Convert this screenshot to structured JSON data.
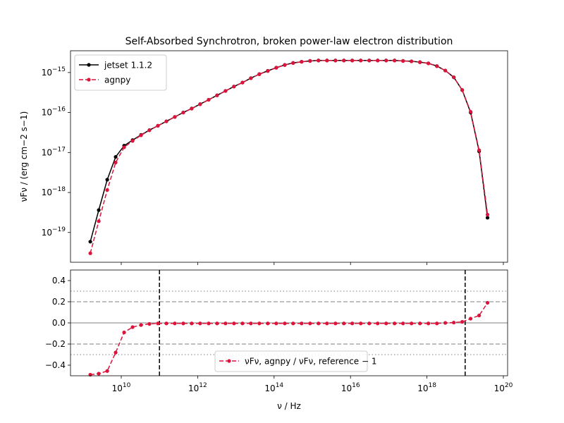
{
  "chart_data": [
    {
      "type": "line",
      "title": "Self-Absorbed Synchrotron, broken power-law electron distribution",
      "y_label": "νFν / (erg cm−2 s−1)",
      "xscale": "log",
      "yscale": "log",
      "xlim": [
        470000000.0,
        1.29e+20
      ],
      "ylim": [
        1.8e-20,
        3.5e-15
      ],
      "xticks": [
        10000000000.0,
        1000000000000.0,
        100000000000000.0,
        1e+16,
        1e+18,
        1e+20
      ],
      "xtick_labels": false,
      "yticks": [
        {
          "value": 1e-19,
          "label": "10−19"
        },
        {
          "value": 1e-18,
          "label": "10−18"
        },
        {
          "value": 1e-17,
          "label": "10−17"
        },
        {
          "value": 1e-16,
          "label": "10−16"
        },
        {
          "value": 1e-15,
          "label": "10−15"
        }
      ],
      "legend": "upper left",
      "x": [
        1550000000.0,
        2580000000.0,
        4300000000.0,
        7140000000.0,
        11900000000.0,
        19800000000.0,
        32900000000.0,
        54700000000.0,
        91200000000.0,
        152000000000.0,
        252000000000.0,
        420000000000.0,
        698000000000.0,
        1160000000000.0,
        1940000000000.0,
        3220000000000.0,
        5360000000000.0,
        8910000000000.0,
        14900000000000.0,
        24700000000000.0,
        41100000000000.0,
        68400000000000.0,
        114000000000000.0,
        190000000000000.0,
        315000000000000.0,
        525000000000000.0,
        873000000000000.0,
        1450000000000000.0,
        2420000000000000.0,
        4030000000000000.0,
        6700000000000000.0,
        1.11e+16,
        1.85e+16,
        3.09e+16,
        5.14e+16,
        8.55e+16,
        1.42e+17,
        2.37e+17,
        3.94e+17,
        6.56e+17,
        1.09e+18,
        1.82e+18,
        3.02e+18,
        5.04e+18,
        8.37e+18,
        1.39e+19,
        2.32e+19,
        3.85e+19
      ],
      "series": [
        {
          "name": "jetset 1.1.2",
          "color": "#000000",
          "linestyle": "solid",
          "marker": "o",
          "values": [
            5.89e-20,
            3.63e-19,
            2.09e-18,
            7.76e-18,
            1.48e-17,
            2.04e-17,
            2.75e-17,
            3.63e-17,
            4.68e-17,
            6.03e-17,
            7.76e-17,
            1e-16,
            1.26e-16,
            1.62e-16,
            2.09e-16,
            2.69e-16,
            3.47e-16,
            4.47e-16,
            5.62e-16,
            7.24e-16,
            9.12e-16,
            1.1e-15,
            1.32e-15,
            1.55e-15,
            1.74e-15,
            1.86e-15,
            1.95e-15,
            2e-15,
            2e-15,
            2e-15,
            2e-15,
            2e-15,
            2e-15,
            2e-15,
            2e-15,
            2e-15,
            2e-15,
            1.95e-15,
            1.91e-15,
            1.82e-15,
            1.7e-15,
            1.45e-15,
            1.12e-15,
            7.59e-16,
            3.63e-16,
            1e-16,
            1.07e-17,
            2.34e-19
          ]
        },
        {
          "name": "agnpy",
          "color": "#dc143c",
          "linestyle": "dashed",
          "marker": "o",
          "values": [
            3.02e-20,
            1.91e-19,
            1.15e-18,
            5.62e-18,
            1.35e-17,
            1.95e-17,
            2.69e-17,
            3.59e-17,
            4.66e-17,
            6e-17,
            7.72e-17,
            9.95e-17,
            1.25e-16,
            1.61e-16,
            2.08e-16,
            2.68e-16,
            3.45e-16,
            4.45e-16,
            5.59e-16,
            7.2e-16,
            9.07e-16,
            1.09e-15,
            1.31e-15,
            1.54e-15,
            1.73e-15,
            1.85e-15,
            1.94e-15,
            1.99e-15,
            1.99e-15,
            1.99e-15,
            1.99e-15,
            1.99e-15,
            1.99e-15,
            1.99e-15,
            1.99e-15,
            1.99e-15,
            1.99e-15,
            1.94e-15,
            1.9e-15,
            1.81e-15,
            1.69e-15,
            1.44e-15,
            1.12e-15,
            7.61e-16,
            3.67e-16,
            1.04e-16,
            1.14e-17,
            2.79e-19
          ]
        }
      ]
    },
    {
      "type": "line",
      "x_label": "ν / Hz",
      "xscale": "log",
      "yscale": "linear",
      "xlim": [
        470000000.0,
        1.29e+20
      ],
      "ylim": [
        -0.5,
        0.5
      ],
      "xticks": [
        {
          "value": 10000000000.0,
          "label": "1010"
        },
        {
          "value": 1000000000000.0,
          "label": "1012"
        },
        {
          "value": 100000000000000.0,
          "label": "1014"
        },
        {
          "value": 1e+16,
          "label": "1016"
        },
        {
          "value": 1e+18,
          "label": "1018"
        },
        {
          "value": 1e+20,
          "label": "1020"
        }
      ],
      "yticks": [
        {
          "value": -0.4,
          "label": "−0.4"
        },
        {
          "value": -0.2,
          "label": "−0.2"
        },
        {
          "value": 0,
          "label": "0.0"
        },
        0.2,
        0.4
      ],
      "hlines": [
        {
          "y": 0,
          "style": "solid",
          "color": "#aaaaaa"
        },
        {
          "y": 0.2,
          "style": "dashed",
          "color": "#aaaaaa"
        },
        {
          "y": -0.2,
          "style": "dashed",
          "color": "#aaaaaa"
        },
        {
          "y": 0.3,
          "style": "dotted",
          "color": "#aaaaaa"
        },
        {
          "y": -0.3,
          "style": "dotted",
          "color": "#aaaaaa"
        }
      ],
      "vlines": [
        {
          "x": 100000000000.0,
          "style": "dashed",
          "color": "#000000"
        },
        {
          "x": 1e+19,
          "style": "dashed",
          "color": "#000000"
        }
      ],
      "legend": "lower center",
      "x": [
        1550000000.0,
        2580000000.0,
        4300000000.0,
        7140000000.0,
        11900000000.0,
        19800000000.0,
        32900000000.0,
        54700000000.0,
        91200000000.0,
        152000000000.0,
        252000000000.0,
        420000000000.0,
        698000000000.0,
        1160000000000.0,
        1940000000000.0,
        3220000000000.0,
        5360000000000.0,
        8910000000000.0,
        14900000000000.0,
        24700000000000.0,
        41100000000000.0,
        68400000000000.0,
        114000000000000.0,
        190000000000000.0,
        315000000000000.0,
        525000000000000.0,
        873000000000000.0,
        1450000000000000.0,
        2420000000000000.0,
        4030000000000000.0,
        6700000000000000.0,
        1.11e+16,
        1.85e+16,
        3.09e+16,
        5.14e+16,
        8.55e+16,
        1.42e+17,
        2.37e+17,
        3.94e+17,
        6.56e+17,
        1.09e+18,
        1.82e+18,
        3.02e+18,
        5.04e+18,
        8.37e+18,
        1.39e+19,
        2.32e+19,
        3.85e+19
      ],
      "series": [
        {
          "name": "νFν, agnpy / νFν, reference − 1",
          "color": "#dc143c",
          "linestyle": "dashed",
          "marker": "o",
          "values": [
            -0.49,
            -0.48,
            -0.455,
            -0.28,
            -0.09,
            -0.04,
            -0.02,
            -0.01,
            -0.005,
            -0.005,
            -0.005,
            -0.005,
            -0.005,
            -0.005,
            -0.005,
            -0.005,
            -0.005,
            -0.005,
            -0.005,
            -0.005,
            -0.005,
            -0.005,
            -0.005,
            -0.005,
            -0.005,
            -0.005,
            -0.005,
            -0.005,
            -0.005,
            -0.005,
            -0.005,
            -0.005,
            -0.005,
            -0.005,
            -0.005,
            -0.005,
            -0.005,
            -0.005,
            -0.005,
            -0.005,
            -0.005,
            -0.005,
            0.0,
            0.003,
            0.01,
            0.04,
            0.07,
            0.19
          ]
        }
      ]
    }
  ]
}
